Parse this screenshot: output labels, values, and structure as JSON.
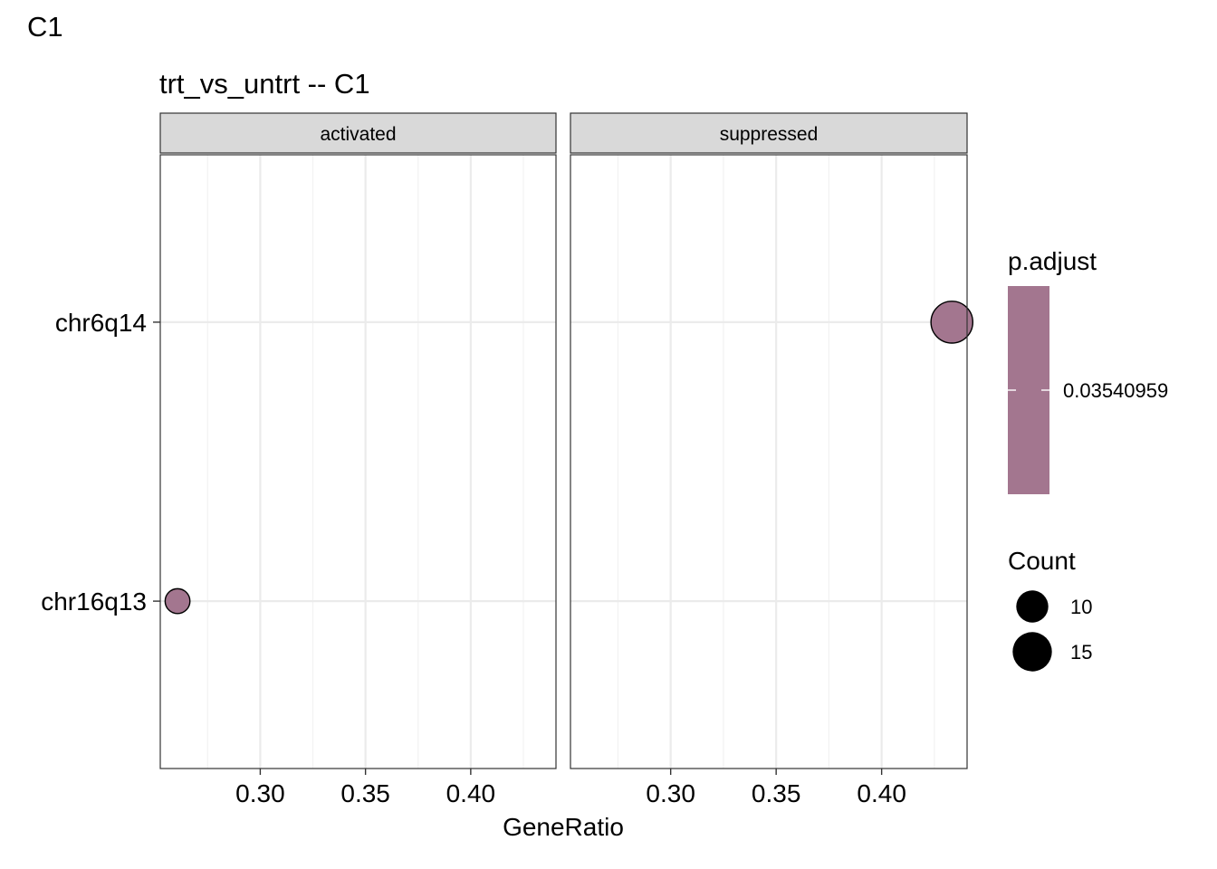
{
  "tag": "C1",
  "chart_data": {
    "type": "scatter",
    "title": "trt_vs_untrt -- C1",
    "xlabel": "GeneRatio",
    "ylabel": "",
    "xlim": [
      0.2525,
      0.4405
    ],
    "x_ticks": [
      0.3,
      0.35,
      0.4
    ],
    "x_tick_labels": [
      "0.30",
      "0.35",
      "0.40"
    ],
    "categories": [
      "chr6q14",
      "chr16q13"
    ],
    "grid": true,
    "panels": [
      {
        "label": "activated",
        "points": [
          {
            "category": "chr16q13",
            "x": 0.2607,
            "count": 6,
            "p_adjust": 0.03540959
          }
        ]
      },
      {
        "label": "suppressed",
        "points": [
          {
            "category": "chr6q14",
            "x": 0.4333,
            "count": 17,
            "p_adjust": 0.03540959
          }
        ]
      }
    ],
    "legend": {
      "placement": "right",
      "color": {
        "title": "p.adjust",
        "tick_labels": [
          "0.03540959"
        ],
        "color": "#a3768f"
      },
      "size": {
        "title": "Count",
        "entries": [
          {
            "label": "10",
            "value": 10
          },
          {
            "label": "15",
            "value": 15
          }
        ]
      }
    }
  }
}
